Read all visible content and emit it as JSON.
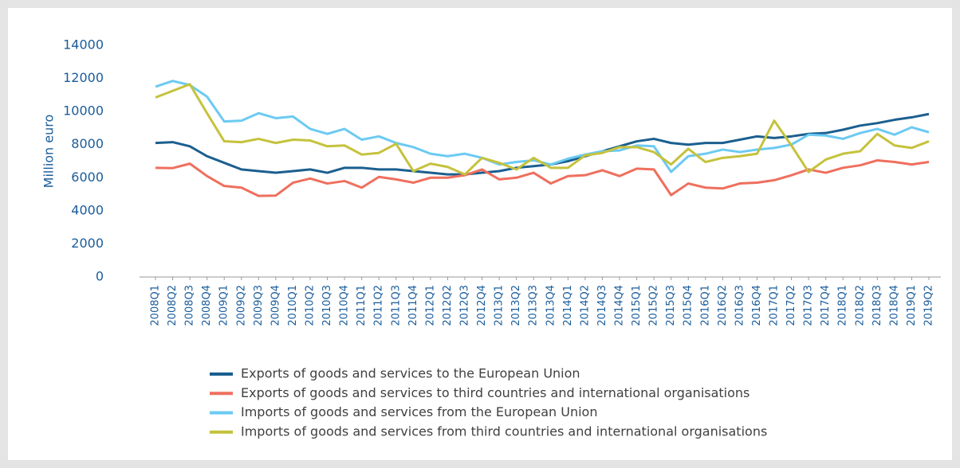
{
  "chart_data": {
    "type": "line",
    "y_label": "Million euro",
    "categories": [
      "2008Q1",
      "2008Q2",
      "2008Q3",
      "2008Q4",
      "2009Q1",
      "2009Q2",
      "2009Q3",
      "2009Q4",
      "2010Q1",
      "2010Q2",
      "2010Q3",
      "2010Q4",
      "2011Q1",
      "2011Q2",
      "2011Q3",
      "2011Q4",
      "2012Q1",
      "2012Q2",
      "2012Q3",
      "2012Q4",
      "2013Q1",
      "2013Q2",
      "2013Q3",
      "2013Q4",
      "2014Q1",
      "2014Q2",
      "2014Q3",
      "2014Q4",
      "2015Q1",
      "2015Q2",
      "2015Q3",
      "2015Q4",
      "2016Q1",
      "2016Q2",
      "2016Q3",
      "2016Q4",
      "2017Q1",
      "2017Q2",
      "2017Q3",
      "2017Q4",
      "2018Q1",
      "2018Q2",
      "2018Q3",
      "2018Q4",
      "2019Q1",
      "2019Q2"
    ],
    "series": [
      {
        "name": "Exports of goods and services to the European Union",
        "color": "#1b5f8f",
        "values": [
          8100,
          8150,
          7900,
          7300,
          6900,
          6500,
          6400,
          6300,
          6400,
          6500,
          6300,
          6600,
          6600,
          6500,
          6500,
          6400,
          6300,
          6200,
          6200,
          6300,
          6400,
          6600,
          6700,
          6800,
          7000,
          7300,
          7600,
          7900,
          8200,
          8350,
          8100,
          8000,
          8100,
          8100,
          8300,
          8500,
          8400,
          8500,
          8650,
          8700,
          8900,
          9150,
          9300,
          9500,
          9650,
          9850
        ]
      },
      {
        "name": "Exports of goods and services to third countries and international organisations",
        "color": "#ef6f5e",
        "values": [
          6600,
          6580,
          6850,
          6100,
          5500,
          5400,
          4900,
          4920,
          5700,
          5950,
          5650,
          5800,
          5400,
          6050,
          5900,
          5700,
          6000,
          6000,
          6150,
          6500,
          5900,
          6000,
          6300,
          5650,
          6100,
          6150,
          6450,
          6100,
          6550,
          6500,
          4950,
          5650,
          5400,
          5350,
          5650,
          5700,
          5850,
          6150,
          6500,
          6300,
          6600,
          6750,
          7050,
          6950,
          6800,
          6950
        ]
      },
      {
        "name": "Imports of goods and services from the European Union",
        "color": "#6ccaf2",
        "values": [
          11500,
          11850,
          11600,
          10900,
          9400,
          9450,
          9900,
          9600,
          9700,
          8950,
          8650,
          8950,
          8300,
          8500,
          8100,
          7850,
          7450,
          7300,
          7450,
          7200,
          6800,
          6950,
          7050,
          6800,
          7150,
          7400,
          7600,
          7650,
          7950,
          7900,
          6350,
          7300,
          7450,
          7700,
          7550,
          7700,
          7800,
          8000,
          8600,
          8550,
          8350,
          8700,
          8950,
          8600,
          9050,
          8750
        ]
      },
      {
        "name": "Imports of goods and services from third countries and international organisations",
        "color": "#c5c23d",
        "values": [
          10850,
          11250,
          11650,
          9900,
          8200,
          8150,
          8350,
          8100,
          8300,
          8250,
          7900,
          7950,
          7400,
          7500,
          8050,
          6400,
          6850,
          6650,
          6200,
          7200,
          6900,
          6500,
          7200,
          6600,
          6600,
          7350,
          7500,
          7850,
          7850,
          7550,
          6800,
          7750,
          6950,
          7200,
          7300,
          7450,
          9450,
          7950,
          6350,
          7100,
          7450,
          7600,
          8650,
          7950,
          7800,
          8200
        ]
      }
    ],
    "ylim": [
      0,
      14000
    ],
    "yticks": [
      0,
      2000,
      4000,
      6000,
      8000,
      10000,
      12000,
      14000
    ]
  }
}
